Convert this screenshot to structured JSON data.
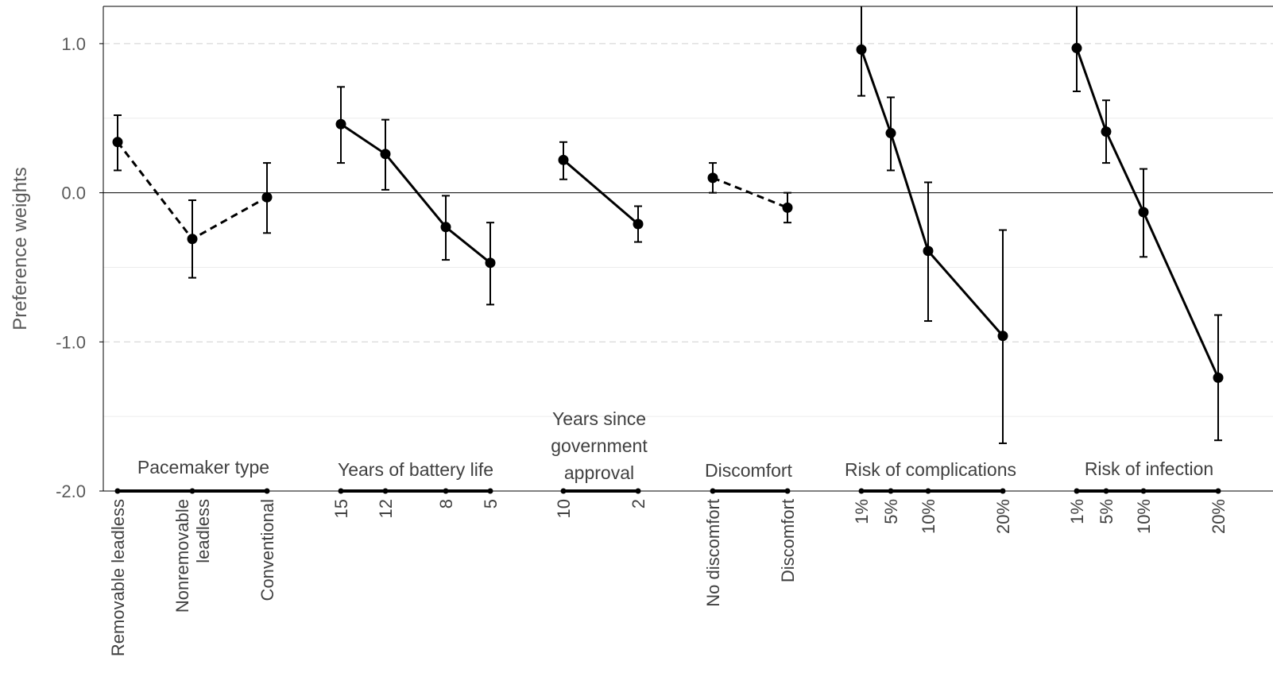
{
  "chart_data": {
    "type": "scatter",
    "title": "",
    "xlabel": "",
    "ylabel": "Preference weights",
    "ylim": [
      -2.0,
      1.25
    ],
    "yticks": [
      {
        "value": 1.0,
        "label": "1.0"
      },
      {
        "value": 0.0,
        "label": "0.0"
      },
      {
        "value": -1.0,
        "label": "-1.0"
      },
      {
        "value": -2.0,
        "label": "-2.0"
      }
    ],
    "minor_gridlines": [
      1.0,
      0.5,
      -0.5,
      -1.0,
      -1.5
    ],
    "groups": [
      {
        "name": "Pacemaker type",
        "line_style": "dashed",
        "points": [
          {
            "level": "Removable leadless",
            "value": 0.34,
            "ci_low": 0.15,
            "ci_high": 0.52
          },
          {
            "level": "Nonremovable\nleadless",
            "value": -0.31,
            "ci_low": -0.57,
            "ci_high": -0.05
          },
          {
            "level": "Conventional",
            "value": -0.03,
            "ci_low": -0.27,
            "ci_high": 0.2
          }
        ]
      },
      {
        "name": "Years of battery life",
        "line_style": "solid",
        "points": [
          {
            "level": "15",
            "value": 0.46,
            "ci_low": 0.2,
            "ci_high": 0.71
          },
          {
            "level": "12",
            "value": 0.26,
            "ci_low": 0.02,
            "ci_high": 0.49
          },
          {
            "level": "8",
            "value": -0.23,
            "ci_low": -0.45,
            "ci_high": -0.02
          },
          {
            "level": "5",
            "value": -0.47,
            "ci_low": -0.75,
            "ci_high": -0.2
          }
        ]
      },
      {
        "name": "Years since\ngovernment\napproval",
        "line_style": "solid",
        "points": [
          {
            "level": "10",
            "value": 0.22,
            "ci_low": 0.09,
            "ci_high": 0.34
          },
          {
            "level": "2",
            "value": -0.21,
            "ci_low": -0.33,
            "ci_high": -0.09
          }
        ]
      },
      {
        "name": "Discomfort",
        "line_style": "dashed",
        "points": [
          {
            "level": "No discomfort",
            "value": 0.1,
            "ci_low": 0.0,
            "ci_high": 0.2
          },
          {
            "level": "Discomfort",
            "value": -0.1,
            "ci_low": -0.2,
            "ci_high": 0.0
          }
        ]
      },
      {
        "name": "Risk of complications",
        "line_style": "solid",
        "points": [
          {
            "level": "1%",
            "value": 0.96,
            "ci_low": 0.65,
            "ci_high": 1.25
          },
          {
            "level": "5%",
            "value": 0.4,
            "ci_low": 0.15,
            "ci_high": 0.64
          },
          {
            "level": "10%",
            "value": -0.39,
            "ci_low": -0.86,
            "ci_high": 0.07
          },
          {
            "level": "20%",
            "value": -0.96,
            "ci_low": -1.68,
            "ci_high": -0.25
          }
        ]
      },
      {
        "name": "Risk of infection",
        "line_style": "solid",
        "points": [
          {
            "level": "1%",
            "value": 0.97,
            "ci_low": 0.68,
            "ci_high": 1.25
          },
          {
            "level": "5%",
            "value": 0.41,
            "ci_low": 0.2,
            "ci_high": 0.62
          },
          {
            "level": "10%",
            "value": -0.13,
            "ci_low": -0.43,
            "ci_high": 0.16
          },
          {
            "level": "20%",
            "value": -1.24,
            "ci_low": -1.66,
            "ci_high": -0.82
          }
        ]
      }
    ],
    "colors": {
      "series": "#000000",
      "gridline": "#d9d9d9",
      "text": "#595959"
    }
  }
}
